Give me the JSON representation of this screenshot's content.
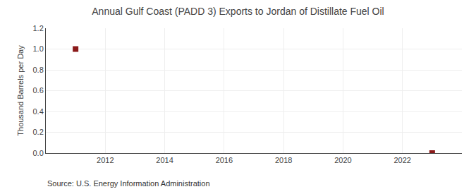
{
  "chart_data": {
    "type": "scatter",
    "title": "Annual Gulf Coast (PADD 3) Exports to Jordan of Distillate Fuel Oil",
    "ylabel": "Thousand Barrels per Day",
    "annotations": [
      "Source: U.S. Energy Information Administration"
    ],
    "x": [
      2011,
      2023
    ],
    "values": [
      1.0,
      0.0
    ],
    "color": "#8b1a1a",
    "marker": "square",
    "xlim": [
      2010.0,
      2024.0
    ],
    "xticks": [
      2012,
      2014,
      2016,
      2018,
      2020,
      2022
    ],
    "ylim": [
      0.0,
      1.2
    ],
    "yticks": [
      {
        "value": 0.0,
        "label": "0.0"
      },
      0.2,
      0.4,
      0.6,
      0.8,
      {
        "value": 1.0,
        "label": "1.0"
      },
      1.2
    ],
    "grid": true
  }
}
